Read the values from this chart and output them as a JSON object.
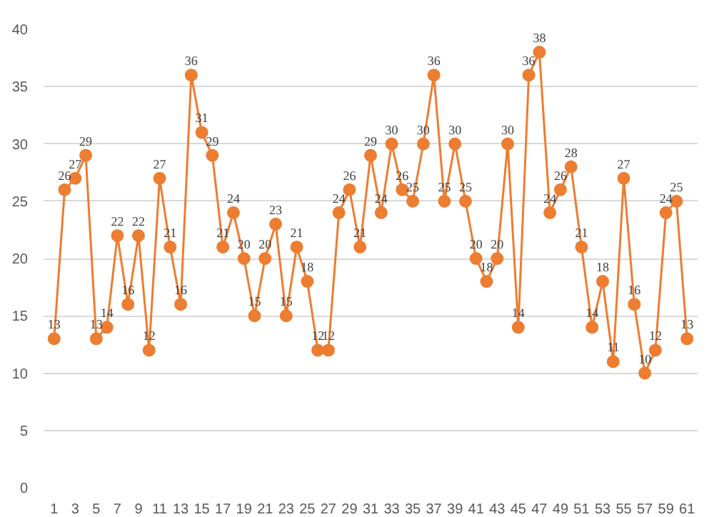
{
  "chart_data": {
    "type": "line",
    "x": [
      1,
      2,
      3,
      4,
      5,
      6,
      7,
      8,
      9,
      10,
      11,
      12,
      13,
      14,
      15,
      16,
      17,
      18,
      19,
      20,
      21,
      22,
      23,
      24,
      25,
      26,
      27,
      28,
      29,
      30,
      31,
      32,
      33,
      34,
      35,
      36,
      37,
      38,
      39,
      40,
      41,
      42,
      43,
      44,
      45,
      46,
      47,
      48,
      49,
      50,
      51,
      52,
      53,
      54,
      55,
      56,
      57,
      58,
      59,
      60,
      61
    ],
    "series": [
      {
        "color": "#ed7d31",
        "values": [
          13,
          26,
          27,
          29,
          13,
          14,
          22,
          16,
          22,
          12,
          27,
          21,
          16,
          36,
          31,
          29,
          21,
          24,
          20,
          15,
          20,
          23,
          15,
          21,
          18,
          12,
          12,
          24,
          26,
          21,
          29,
          24,
          30,
          26,
          25,
          30,
          36,
          25,
          30,
          25,
          20,
          18,
          20,
          30,
          14,
          36,
          38,
          24,
          26,
          28,
          21,
          14,
          18,
          11,
          27,
          16,
          10,
          12,
          24,
          25,
          13
        ]
      }
    ],
    "xlim": [
      0,
      62
    ],
    "xticks": [
      1,
      3,
      5,
      7,
      9,
      11,
      13,
      15,
      17,
      19,
      21,
      23,
      25,
      27,
      29,
      31,
      33,
      35,
      37,
      39,
      41,
      43,
      45,
      47,
      49,
      51,
      53,
      55,
      57,
      59,
      61
    ],
    "ylim": [
      0,
      40
    ],
    "yticks": [
      0,
      5,
      10,
      15,
      20,
      25,
      30,
      35,
      40
    ],
    "grid": "y",
    "marker": "circle",
    "line_style": "solid",
    "data_labels": true
  }
}
